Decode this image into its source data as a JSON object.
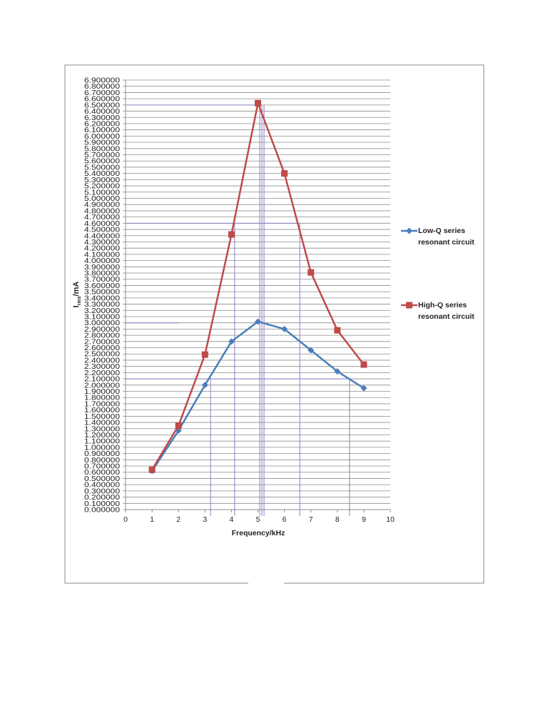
{
  "chart_data": {
    "type": "line",
    "y_label_parts": [
      "I",
      "rms",
      "/mA"
    ],
    "x_label": "Frequency/kHz",
    "x": [
      1,
      2,
      3,
      4,
      5,
      6,
      7,
      8,
      9
    ],
    "series": [
      {
        "name": "Low-Q series resonant circuit",
        "color": "#4a7ebb",
        "marker": "diamond",
        "values": [
          0.62,
          1.27,
          2.0,
          2.7,
          3.02,
          2.9,
          2.56,
          2.22,
          1.95
        ]
      },
      {
        "name": "High-Q series resonant circuit",
        "color": "#be4b48",
        "marker": "square",
        "values": [
          0.64,
          1.35,
          2.49,
          4.42,
          6.53,
          5.4,
          3.81,
          2.88,
          2.33
        ]
      }
    ],
    "xlim": [
      0,
      10
    ],
    "xticks": [
      0,
      1,
      2,
      3,
      4,
      5,
      6,
      7,
      8,
      9,
      10
    ],
    "ylim": [
      0,
      6.9
    ],
    "yticks": [
      {
        "value": 0,
        "label": "0.000000"
      },
      {
        "value": 0.1,
        "label": "0.100000"
      },
      {
        "value": 0.2,
        "label": "0.200000"
      },
      {
        "value": 0.3,
        "label": "0.300000"
      },
      {
        "value": 0.4,
        "label": "0.400000"
      },
      {
        "value": 0.5,
        "label": "0.500000"
      },
      {
        "value": 0.6,
        "label": "0.600000"
      },
      {
        "value": 0.7,
        "label": "0.700000"
      },
      {
        "value": 0.8,
        "label": "0.800000"
      },
      {
        "value": 0.9,
        "label": "0.900000"
      },
      {
        "value": 1.0,
        "label": "1.000000"
      },
      {
        "value": 1.1,
        "label": "1.100000"
      },
      {
        "value": 1.2,
        "label": "1.200000"
      },
      {
        "value": 1.3,
        "label": "1.300000"
      },
      {
        "value": 1.4,
        "label": "1.400000"
      },
      {
        "value": 1.5,
        "label": "1.500000"
      },
      {
        "value": 1.6,
        "label": "1.600000"
      },
      {
        "value": 1.7,
        "label": "1.700000"
      },
      {
        "value": 1.8,
        "label": "1.800000"
      },
      {
        "value": 1.9,
        "label": "1.900000"
      },
      {
        "value": 2.0,
        "label": "2.000000"
      },
      {
        "value": 2.1,
        "label": "2.100000"
      },
      {
        "value": 2.2,
        "label": "2.200000"
      },
      {
        "value": 2.3,
        "label": "2.300000"
      },
      {
        "value": 2.4,
        "label": "2.400000"
      },
      {
        "value": 2.5,
        "label": "2.500000"
      },
      {
        "value": 2.6,
        "label": "2.600000"
      },
      {
        "value": 2.7,
        "label": "2.700000"
      },
      {
        "value": 2.8,
        "label": "2.800000"
      },
      {
        "value": 2.9,
        "label": "2.900000"
      },
      {
        "value": 3.0,
        "label": "3.000000"
      },
      {
        "value": 3.1,
        "label": "3.100000"
      },
      {
        "value": 3.2,
        "label": "3.200000"
      },
      {
        "value": 3.3,
        "label": "3.300000"
      },
      {
        "value": 3.4,
        "label": "3.400000"
      },
      {
        "value": 3.5,
        "label": "3.500000"
      },
      {
        "value": 3.6,
        "label": "3.600000"
      },
      {
        "value": 3.7,
        "label": "3.700000"
      },
      {
        "value": 3.8,
        "label": "3.800000"
      },
      {
        "value": 3.9,
        "label": "3.900000"
      },
      {
        "value": 4.0,
        "label": "4.000000"
      },
      {
        "value": 4.1,
        "label": "4.100000"
      },
      {
        "value": 4.2,
        "label": "4.200000"
      },
      {
        "value": 4.3,
        "label": "4.300000"
      },
      {
        "value": 4.4,
        "label": "4.400000"
      },
      {
        "value": 4.5,
        "label": "4.500000"
      },
      {
        "value": 4.6,
        "label": "4.600000"
      },
      {
        "value": 4.7,
        "label": "4.700000"
      },
      {
        "value": 4.8,
        "label": "4.800000"
      },
      {
        "value": 4.9,
        "label": "4.900000"
      },
      {
        "value": 5.0,
        "label": "5.000000"
      },
      {
        "value": 5.1,
        "label": "5.100000"
      },
      {
        "value": 5.2,
        "label": "5.200000"
      },
      {
        "value": 5.3,
        "label": "5.300000"
      },
      {
        "value": 5.4,
        "label": "5.400000"
      },
      {
        "value": 5.5,
        "label": "5.500000"
      },
      {
        "value": 5.6,
        "label": "5.600000"
      },
      {
        "value": 5.7,
        "label": "5.700000"
      },
      {
        "value": 5.8,
        "label": "5.800000"
      },
      {
        "value": 5.9,
        "label": "5.900000"
      },
      {
        "value": 6.0,
        "label": "6.000000"
      },
      {
        "value": 6.1,
        "label": "6.100000"
      },
      {
        "value": 6.2,
        "label": "6.200000"
      },
      {
        "value": 6.3,
        "label": "6.300000"
      },
      {
        "value": 6.4,
        "label": "6.400000"
      },
      {
        "value": 6.5,
        "label": "6.500000"
      },
      {
        "value": 6.6,
        "label": "6.600000"
      },
      {
        "value": 6.7,
        "label": "6.700000"
      },
      {
        "value": 6.8,
        "label": "6.800000"
      },
      {
        "value": 6.9,
        "label": "6.900000"
      }
    ],
    "grid": true,
    "legend": "right",
    "guide_color": "#8e7cc3",
    "guide_hlines": [
      {
        "y": 6.5,
        "x": [
          0,
          5.05
        ]
      },
      {
        "y": 4.6,
        "x": [
          0,
          6.58
        ]
      },
      {
        "y": 3.0,
        "x": [
          0,
          2.0
        ]
      },
      {
        "y": 2.1,
        "x": [
          0,
          8.46
        ]
      }
    ],
    "guide_vlines": [
      {
        "x": 3.21,
        "y": [
          -0.1,
          2.1
        ]
      },
      {
        "x": 4.12,
        "y": [
          -0.1,
          4.6
        ]
      },
      {
        "x": 5.07,
        "y": [
          -0.1,
          6.5
        ]
      },
      {
        "x": 5.15,
        "y": [
          -0.1,
          6.5
        ]
      },
      {
        "x": 5.23,
        "y": [
          -0.1,
          6.5
        ]
      },
      {
        "x": 6.58,
        "y": [
          -0.1,
          4.6
        ]
      },
      {
        "x": 8.46,
        "y": [
          -0.1,
          2.1
        ]
      }
    ]
  }
}
